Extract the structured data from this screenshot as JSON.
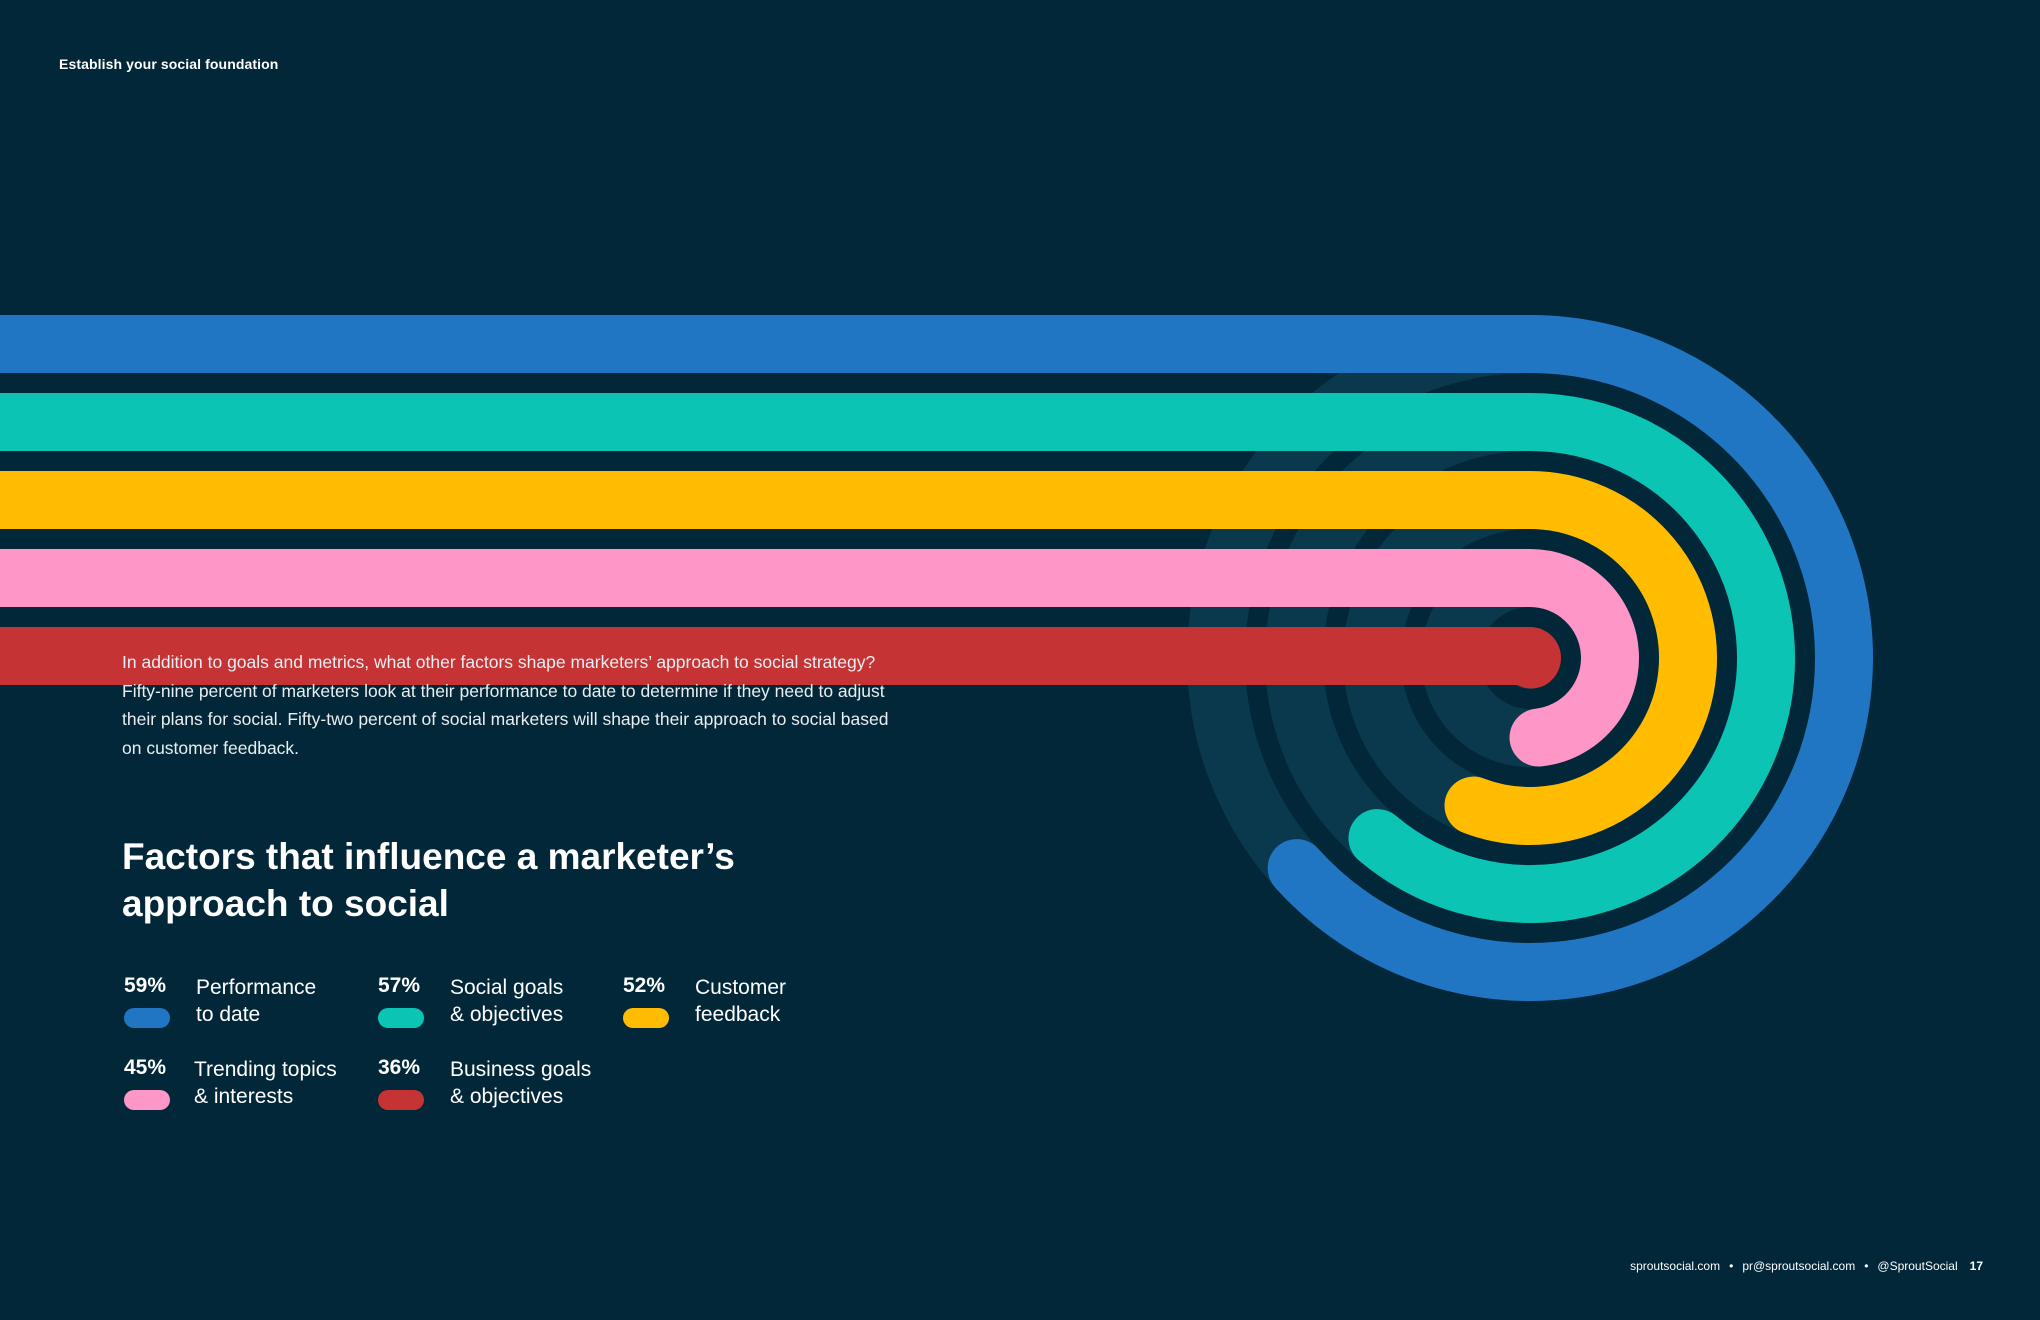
{
  "section_label": "Establish your social foundation",
  "intro": "In addition to goals and metrics, what other factors shape marketers’ approach to social strategy? Fifty-nine percent of marketers look at their performance to date to determine if they need to adjust their plans for social. Fifty-two percent of social marketers will shape their approach to social based on customer feedback.",
  "chart_title": "Factors that influence a marketer’s approach to social",
  "colors": {
    "background": "#012738",
    "track": "#0A394D",
    "blue": "#2176C4",
    "teal": "#0BC4B4",
    "yellow": "#FFBC00",
    "pink": "#FF96C8",
    "red": "#C63335"
  },
  "chart_data": {
    "type": "radial-bar",
    "title": "Factors that influence a marketer’s approach to social",
    "unit": "%",
    "series": [
      {
        "label": "Performance to date",
        "label_lines": [
          "Performance",
          "to date"
        ],
        "value": 59,
        "display": "59%",
        "color": "#2176C4"
      },
      {
        "label": "Social goals & objectives",
        "label_lines": [
          "Social goals",
          "& objectives"
        ],
        "value": 57,
        "display": "57%",
        "color": "#0BC4B4"
      },
      {
        "label": "Customer feedback",
        "label_lines": [
          "Customer",
          "feedback"
        ],
        "value": 52,
        "display": "52%",
        "color": "#FFBC00"
      },
      {
        "label": "Trending topics & interests",
        "label_lines": [
          "Trending topics",
          "& interests"
        ],
        "value": 45,
        "display": "45%",
        "color": "#FF96C8"
      },
      {
        "label": "Business goals & objectives",
        "label_lines": [
          "Business goals",
          "& objectives"
        ],
        "value": 36,
        "display": "36%",
        "color": "#C63335"
      }
    ]
  },
  "footer": {
    "site": "sproutsocial.com",
    "separator": "•",
    "email": "pr@sproutsocial.com",
    "handle": "@SproutSocial",
    "page": "17"
  }
}
